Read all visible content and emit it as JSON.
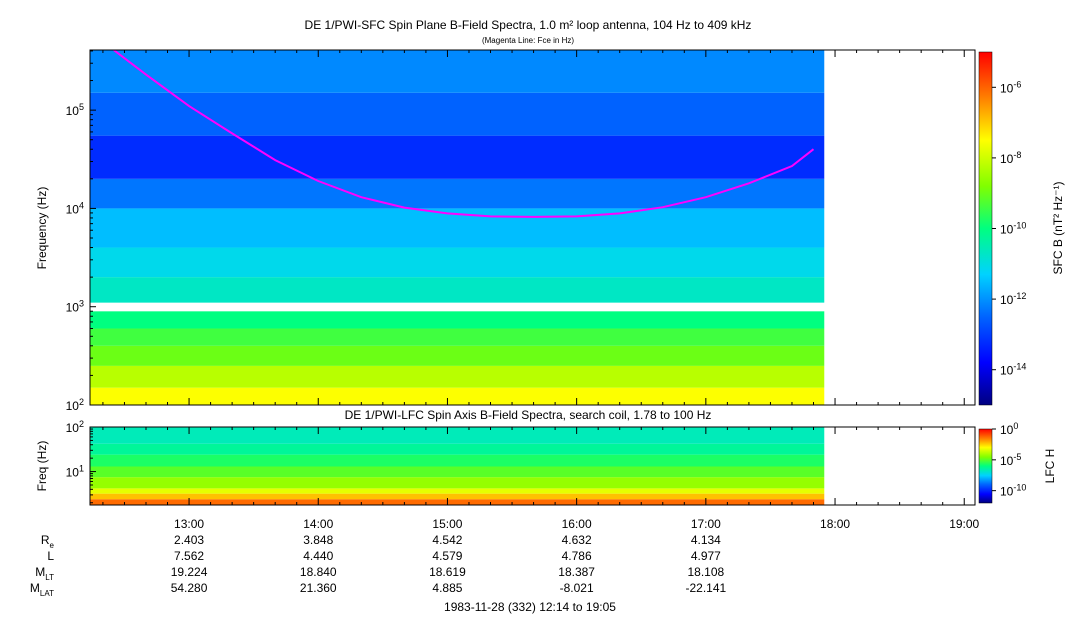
{
  "chart_data": [
    {
      "type": "heatmap",
      "title": "DE 1/PWI-SFC  Spin Plane B-Field Spectra, 1.0 m² loop antenna, 104 Hz to 409 kHz",
      "subtitle": "(Magenta Line: Fce in Hz)",
      "ylabel": "Frequency (Hz)",
      "y_scale": "log",
      "ylim": [
        100,
        409000
      ],
      "y_ticks": [
        {
          "v": 100,
          "label": "10",
          "exp": "2"
        },
        {
          "v": 1000,
          "label": "10",
          "exp": "3"
        },
        {
          "v": 10000,
          "label": "10",
          "exp": "4"
        },
        {
          "v": 100000,
          "label": "10",
          "exp": "5"
        }
      ],
      "colorbar_label": "SFC B (nT² Hz⁻¹)",
      "colorbar_scale": "log",
      "colorbar_range": [
        1e-15,
        1e-05
      ],
      "colorbar_ticks": [
        {
          "v": 1e-14,
          "label": "10",
          "exp": "-14"
        },
        {
          "v": 1e-12,
          "label": "10",
          "exp": "-12"
        },
        {
          "v": 1e-10,
          "label": "10",
          "exp": "-10"
        },
        {
          "v": 1e-08,
          "label": "10",
          "exp": "-8"
        },
        {
          "v": 1e-06,
          "label": "10",
          "exp": "-6"
        }
      ],
      "data_end_time": "17:55",
      "bands": [
        {
          "from": 100,
          "to": 150,
          "value": 3e-08
        },
        {
          "from": 150,
          "to": 250,
          "value": 6e-09
        },
        {
          "from": 250,
          "to": 400,
          "value": 1e-09
        },
        {
          "from": 400,
          "to": 600,
          "value": 4e-10
        },
        {
          "from": 600,
          "to": 900,
          "value": 1e-10
        },
        {
          "from": 900,
          "to": 1100,
          "value": null
        },
        {
          "from": 1100,
          "to": 2000,
          "value": 2e-11
        },
        {
          "from": 2000,
          "to": 4000,
          "value": 8e-12
        },
        {
          "from": 4000,
          "to": 10000,
          "value": 3e-12
        },
        {
          "from": 10000,
          "to": 20000,
          "value": 5e-13
        },
        {
          "from": 20000,
          "to": 55000,
          "value": 6e-14
        },
        {
          "from": 55000,
          "to": 150000,
          "value": 3e-13
        },
        {
          "from": 150000,
          "to": 409000,
          "value": 8e-13
        }
      ],
      "series": [
        {
          "name": "Fce",
          "color": "#ff00ff",
          "x": [
            "12:25",
            "12:40",
            "13:00",
            "13:20",
            "13:40",
            "14:00",
            "14:20",
            "14:40",
            "15:00",
            "15:20",
            "15:40",
            "16:00",
            "16:20",
            "16:40",
            "17:00",
            "17:20",
            "17:40",
            "17:50"
          ],
          "y": [
            409000,
            230000,
            110000,
            58000,
            31000,
            19000,
            13000,
            10200,
            8900,
            8300,
            8200,
            8300,
            8900,
            10300,
            13000,
            18000,
            27000,
            40000
          ]
        }
      ]
    },
    {
      "type": "heatmap",
      "title": "DE 1/PWI-LFC  Spin Axis B-Field Spectra, search coil, 1.78 to 100 Hz",
      "ylabel": "Freq (Hz)",
      "y_scale": "log",
      "ylim": [
        1.78,
        100
      ],
      "y_ticks": [
        {
          "v": 10,
          "label": "10",
          "exp": "1"
        },
        {
          "v": 100,
          "label": "10",
          "exp": "2"
        }
      ],
      "colorbar_label": "LFC H",
      "colorbar_scale": "log",
      "colorbar_range": [
        1e-12,
        1
      ],
      "colorbar_ticks": [
        {
          "v": 1e-10,
          "label": "10",
          "exp": "-10"
        },
        {
          "v": 1e-05,
          "label": "10",
          "exp": "-5"
        },
        {
          "v": 1,
          "label": "10",
          "exp": "0"
        }
      ],
      "data_end_time": "17:55",
      "bands": [
        {
          "from": 1.78,
          "to": 2.4,
          "value": 0.05
        },
        {
          "from": 2.4,
          "to": 3.2,
          "value": 0.005
        },
        {
          "from": 3.2,
          "to": 4.2,
          "value": 0.0005
        },
        {
          "from": 4.2,
          "to": 7.5,
          "value": 5e-05
        },
        {
          "from": 7.5,
          "to": 13,
          "value": 1e-05
        },
        {
          "from": 13,
          "to": 24,
          "value": 2e-06
        },
        {
          "from": 24,
          "to": 42,
          "value": 5e-07
        },
        {
          "from": 42,
          "to": 100,
          "value": 2e-07
        }
      ]
    }
  ],
  "time_axis": {
    "start": "12:14",
    "end": "19:05",
    "ticks": [
      "13:00",
      "14:00",
      "15:00",
      "16:00",
      "17:00",
      "18:00",
      "19:00"
    ]
  },
  "ephemeris": {
    "rows": [
      {
        "label": "R",
        "sub": "e",
        "values": [
          "2.403",
          "3.848",
          "4.542",
          "4.632",
          "4.134"
        ]
      },
      {
        "label": "L",
        "sub": "",
        "values": [
          "7.562",
          "4.440",
          "4.579",
          "4.786",
          "4.977"
        ]
      },
      {
        "label": "M",
        "sub": "LT",
        "values": [
          "19.224",
          "18.840",
          "18.619",
          "18.387",
          "18.108"
        ]
      },
      {
        "label": "M",
        "sub": "LAT",
        "values": [
          "54.280",
          "21.360",
          "4.885",
          "-8.021",
          "-22.141"
        ]
      }
    ]
  },
  "footer": "1983-11-28 (332) 12:14 to 19:05"
}
